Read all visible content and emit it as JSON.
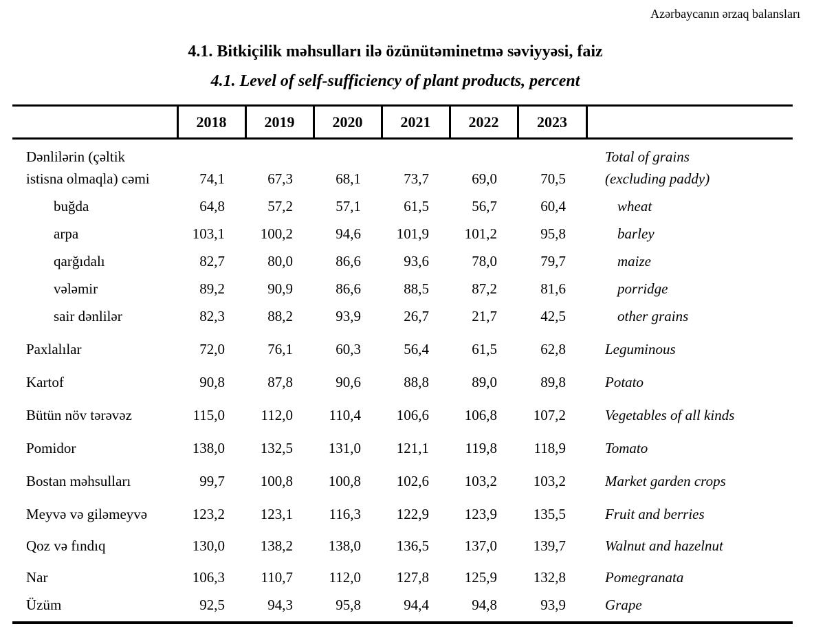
{
  "page": {
    "header_right": "Azərbaycanın ərzaq balansları",
    "title_az": "4.1. Bitkiçilik məhsulları ilə özünütəminetmə səviyyəsi, faiz",
    "title_en": "4.1. Level of self-sufficiency of plant products, percent"
  },
  "table": {
    "years": [
      "2018",
      "2019",
      "2020",
      "2021",
      "2022",
      "2023"
    ],
    "rows": [
      {
        "label_az_1": "Dənlilərin (çəltik",
        "label_az_2": "istisna olmaqla) cəmi",
        "label_en_1": "Total of grains",
        "label_en_2": "(excluding paddy)",
        "values": [
          "74,1",
          "67,3",
          "68,1",
          "73,7",
          "69,0",
          "70,5"
        ]
      },
      {
        "label_az": "buğda",
        "label_en": "wheat",
        "values": [
          "64,8",
          "57,2",
          "57,1",
          "61,5",
          "56,7",
          "60,4"
        ]
      },
      {
        "label_az": "arpa",
        "label_en": "barley",
        "values": [
          "103,1",
          "100,2",
          "94,6",
          "101,9",
          "101,2",
          "95,8"
        ]
      },
      {
        "label_az": "qarğıdalı",
        "label_en": "maize",
        "values": [
          "82,7",
          "80,0",
          "86,6",
          "93,6",
          "78,0",
          "79,7"
        ]
      },
      {
        "label_az": "vələmir",
        "label_en": "porridge",
        "values": [
          "89,2",
          "90,9",
          "86,6",
          "88,5",
          "87,2",
          "81,6"
        ]
      },
      {
        "label_az": "sair dənlilər",
        "label_en": "other grains",
        "values": [
          "82,3",
          "88,2",
          "93,9",
          "26,7",
          "21,7",
          "42,5"
        ]
      },
      {
        "label_az": "Paxlalılar",
        "label_en": "Leguminous",
        "values": [
          "72,0",
          "76,1",
          "60,3",
          "56,4",
          "61,5",
          "62,8"
        ]
      },
      {
        "label_az": "Kartof",
        "label_en": "Potato",
        "values": [
          "90,8",
          "87,8",
          "90,6",
          "88,8",
          "89,0",
          "89,8"
        ]
      },
      {
        "label_az": "Bütün növ tərəvəz",
        "label_en": "Vegetables of all kinds",
        "values": [
          "115,0",
          "112,0",
          "110,4",
          "106,6",
          "106,8",
          "107,2"
        ]
      },
      {
        "label_az": "Pomidor",
        "label_en": "Tomato",
        "values": [
          "138,0",
          "132,5",
          "131,0",
          "121,1",
          "119,8",
          "118,9"
        ]
      },
      {
        "label_az": "Bostan məhsulları",
        "label_en": "Market garden crops",
        "values": [
          "99,7",
          "100,8",
          "100,8",
          "102,6",
          "103,2",
          "103,2"
        ]
      },
      {
        "label_az": "Meyvə və giləmeyvə",
        "label_en": "Fruit and berries",
        "values": [
          "123,2",
          "123,1",
          "116,3",
          "122,9",
          "123,9",
          "135,5"
        ]
      },
      {
        "label_az": "Qoz və fındıq",
        "label_en": "Walnut and hazelnut",
        "values": [
          "130,0",
          "138,2",
          "138,0",
          "136,5",
          "137,0",
          "139,7"
        ]
      },
      {
        "label_az": "Nar",
        "label_en": "Pomegranata",
        "values": [
          "106,3",
          "110,7",
          "112,0",
          "127,8",
          "125,9",
          "132,8"
        ]
      },
      {
        "label_az": "Üzüm",
        "label_en": "Grape",
        "values": [
          "92,5",
          "94,3",
          "95,8",
          "94,4",
          "94,8",
          "93,9"
        ]
      }
    ]
  }
}
